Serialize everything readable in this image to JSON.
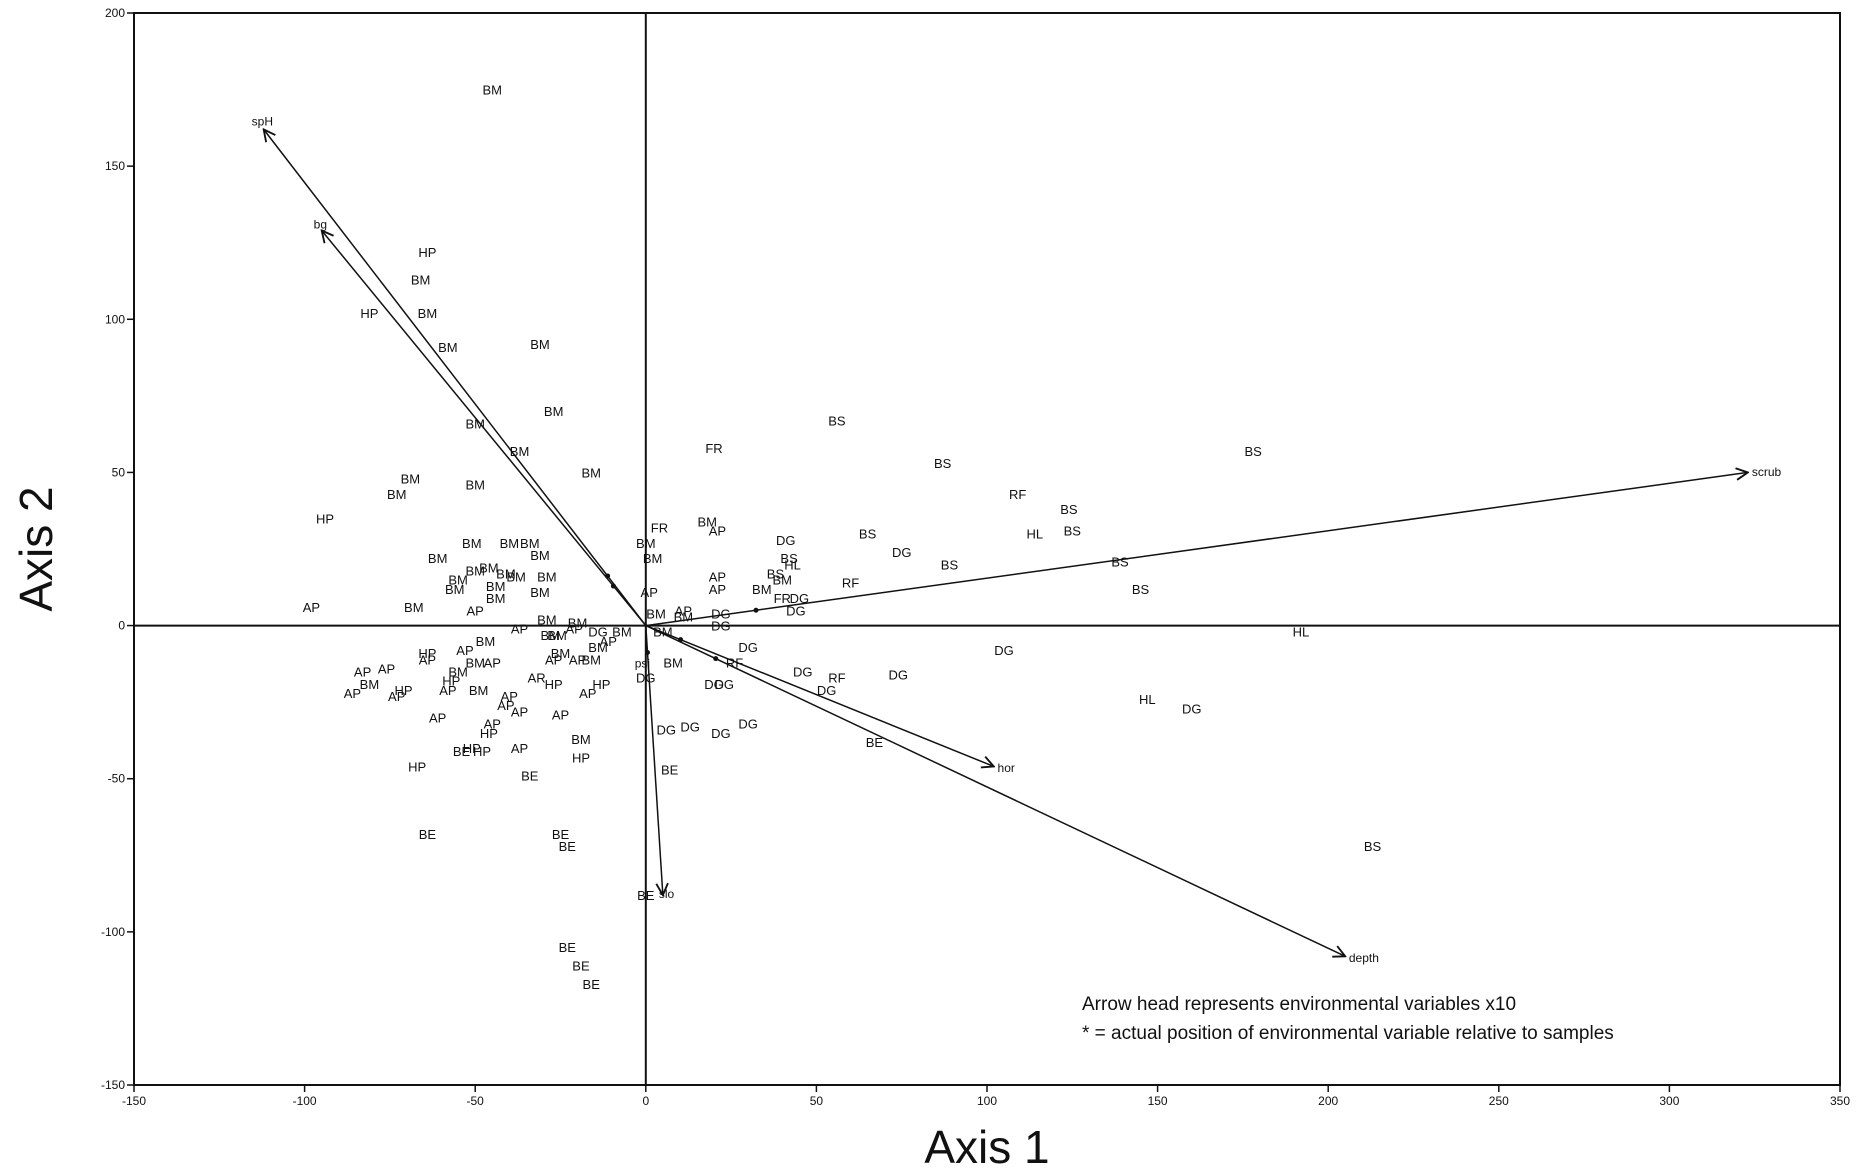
{
  "chart_data": {
    "type": "scatter",
    "xlabel": "Axis 1",
    "ylabel": "Axis 2",
    "xlim": [
      -150,
      350
    ],
    "ylim": [
      -150,
      200
    ],
    "xticks": [
      -150,
      -100,
      -50,
      0,
      50,
      100,
      150,
      200,
      250,
      300,
      350
    ],
    "yticks": [
      -150,
      -100,
      -50,
      0,
      50,
      100,
      150,
      200
    ],
    "reference_lines": {
      "x0": true,
      "y0": true
    },
    "annotations": [
      "Arrow head represents environmental variables x10",
      "* = actual position of environmental variable relative to samples"
    ],
    "vectors": [
      {
        "name": "spH",
        "x": -112,
        "y": 162
      },
      {
        "name": "bg",
        "x": -95,
        "y": 129
      },
      {
        "name": "scrub",
        "x": 323,
        "y": 50
      },
      {
        "name": "hor",
        "x": 102,
        "y": -46
      },
      {
        "name": "depth",
        "x": 205,
        "y": -108
      },
      {
        "name": "slo",
        "x": 5,
        "y": -88
      }
    ],
    "extra_labels": [
      {
        "text": "psi",
        "x": -1,
        "y": -12
      }
    ],
    "points": [
      {
        "label": "BM",
        "x": -45,
        "y": 175
      },
      {
        "label": "HP",
        "x": -64,
        "y": 122
      },
      {
        "label": "BM",
        "x": -66,
        "y": 113
      },
      {
        "label": "HP",
        "x": -81,
        "y": 102
      },
      {
        "label": "BM",
        "x": -64,
        "y": 102
      },
      {
        "label": "BM",
        "x": -58,
        "y": 91
      },
      {
        "label": "BM",
        "x": -31,
        "y": 92
      },
      {
        "label": "BM",
        "x": -27,
        "y": 70
      },
      {
        "label": "BM",
        "x": -50,
        "y": 66
      },
      {
        "label": "BM",
        "x": -37,
        "y": 57
      },
      {
        "label": "BM",
        "x": -69,
        "y": 48
      },
      {
        "label": "BM",
        "x": -73,
        "y": 43
      },
      {
        "label": "BM",
        "x": -50,
        "y": 46
      },
      {
        "label": "BM",
        "x": -16,
        "y": 50
      },
      {
        "label": "HP",
        "x": -94,
        "y": 35
      },
      {
        "label": "BM",
        "x": -51,
        "y": 27
      },
      {
        "label": "BM",
        "x": -40,
        "y": 27
      },
      {
        "label": "BM",
        "x": -34,
        "y": 27
      },
      {
        "label": "BM",
        "x": -61,
        "y": 22
      },
      {
        "label": "BM",
        "x": -31,
        "y": 23
      },
      {
        "label": "BM",
        "x": -46,
        "y": 19
      },
      {
        "label": "BM",
        "x": -50,
        "y": 18
      },
      {
        "label": "BM",
        "x": -55,
        "y": 15
      },
      {
        "label": "BM",
        "x": -41,
        "y": 17
      },
      {
        "label": "BM",
        "x": -44,
        "y": 13
      },
      {
        "label": "BM",
        "x": -38,
        "y": 16
      },
      {
        "label": "BM",
        "x": -29,
        "y": 16
      },
      {
        "label": "BM",
        "x": -56,
        "y": 12
      },
      {
        "label": "BM",
        "x": -31,
        "y": 11
      },
      {
        "label": "BM",
        "x": -44,
        "y": 9
      },
      {
        "label": "AP",
        "x": -98,
        "y": 6
      },
      {
        "label": "BM",
        "x": -68,
        "y": 6
      },
      {
        "label": "AP",
        "x": -50,
        "y": 5
      },
      {
        "label": "AP",
        "x": -37,
        "y": -1
      },
      {
        "label": "BM",
        "x": -29,
        "y": 2
      },
      {
        "label": "BM",
        "x": -26,
        "y": -3
      },
      {
        "label": "BM",
        "x": -47,
        "y": -5
      },
      {
        "label": "AP",
        "x": -53,
        "y": -8
      },
      {
        "label": "AP",
        "x": -45,
        "y": -12
      },
      {
        "label": "BM",
        "x": -50,
        "y": -12
      },
      {
        "label": "HP",
        "x": -64,
        "y": -9
      },
      {
        "label": "AP",
        "x": -64,
        "y": -11
      },
      {
        "label": "BM",
        "x": -55,
        "y": -15
      },
      {
        "label": "AP",
        "x": -83,
        "y": -15
      },
      {
        "label": "AP",
        "x": -76,
        "y": -14
      },
      {
        "label": "BM",
        "x": -81,
        "y": -19
      },
      {
        "label": "AP",
        "x": -86,
        "y": -22
      },
      {
        "label": "HP",
        "x": -71,
        "y": -21
      },
      {
        "label": "AP",
        "x": -73,
        "y": -23
      },
      {
        "label": "HP",
        "x": -57,
        "y": -18
      },
      {
        "label": "AP",
        "x": -58,
        "y": -21
      },
      {
        "label": "BM",
        "x": -49,
        "y": -21
      },
      {
        "label": "AP",
        "x": -40,
        "y": -23
      },
      {
        "label": "AP",
        "x": -41,
        "y": -26
      },
      {
        "label": "AP",
        "x": -37,
        "y": -28
      },
      {
        "label": "AP",
        "x": -61,
        "y": -30
      },
      {
        "label": "AP",
        "x": -45,
        "y": -32
      },
      {
        "label": "HP",
        "x": -46,
        "y": -35
      },
      {
        "label": "HP",
        "x": -51,
        "y": -40
      },
      {
        "label": "HP",
        "x": -48,
        "y": -41
      },
      {
        "label": "BE",
        "x": -54,
        "y": -41
      },
      {
        "label": "AP",
        "x": -37,
        "y": -40
      },
      {
        "label": "HP",
        "x": -67,
        "y": -46
      },
      {
        "label": "BE",
        "x": -34,
        "y": -49
      },
      {
        "label": "BM",
        "x": -19,
        "y": -37
      },
      {
        "label": "HP",
        "x": -19,
        "y": -43
      },
      {
        "label": "AP",
        "x": -25,
        "y": -29
      },
      {
        "label": "AR",
        "x": -32,
        "y": -17
      },
      {
        "label": "HP",
        "x": -27,
        "y": -19
      },
      {
        "label": "AP",
        "x": -17,
        "y": -22
      },
      {
        "label": "HP",
        "x": -13,
        "y": -19
      },
      {
        "label": "AP",
        "x": -27,
        "y": -11
      },
      {
        "label": "BM",
        "x": -25,
        "y": -9
      },
      {
        "label": "AP",
        "x": -20,
        "y": -11
      },
      {
        "label": "BM",
        "x": -16,
        "y": -11
      },
      {
        "label": "BM",
        "x": -14,
        "y": -7
      },
      {
        "label": "AP",
        "x": -11,
        "y": -5
      },
      {
        "label": "BM",
        "x": -28,
        "y": -3
      },
      {
        "label": "AP",
        "x": -21,
        "y": -1
      },
      {
        "label": "DG",
        "x": -14,
        "y": -2
      },
      {
        "label": "BM",
        "x": -7,
        "y": -2
      },
      {
        "label": "BM",
        "x": -20,
        "y": 1
      },
      {
        "label": "BE",
        "x": -25,
        "y": -68
      },
      {
        "label": "BE",
        "x": -23,
        "y": -72
      },
      {
        "label": "BE",
        "x": -64,
        "y": -68
      },
      {
        "label": "BE",
        "x": -23,
        "y": -105
      },
      {
        "label": "BE",
        "x": -19,
        "y": -111
      },
      {
        "label": "BE",
        "x": -16,
        "y": -117
      },
      {
        "label": "BE",
        "x": 7,
        "y": -47
      },
      {
        "label": "BE",
        "x": 0,
        "y": -88
      },
      {
        "label": "FR",
        "x": 20,
        "y": 58
      },
      {
        "label": "FR",
        "x": 4,
        "y": 32
      },
      {
        "label": "BM",
        "x": 0,
        "y": 27
      },
      {
        "label": "BM",
        "x": 2,
        "y": 22
      },
      {
        "label": "BM",
        "x": 18,
        "y": 34
      },
      {
        "label": "AP",
        "x": 21,
        "y": 31
      },
      {
        "label": "AP",
        "x": 1,
        "y": 11
      },
      {
        "label": "AP",
        "x": 21,
        "y": 16
      },
      {
        "label": "AP",
        "x": 21,
        "y": 12
      },
      {
        "label": "BM",
        "x": 34,
        "y": 12
      },
      {
        "label": "BM",
        "x": 3,
        "y": 4
      },
      {
        "label": "AP",
        "x": 11,
        "y": 5
      },
      {
        "label": "BM",
        "x": 11,
        "y": 3
      },
      {
        "label": "DG",
        "x": 22,
        "y": 4
      },
      {
        "label": "DG",
        "x": 22,
        "y": 0
      },
      {
        "label": "BM",
        "x": 5,
        "y": -2
      },
      {
        "label": "DG",
        "x": 30,
        "y": -7
      },
      {
        "label": "BM",
        "x": 8,
        "y": -12
      },
      {
        "label": "RF",
        "x": 26,
        "y": -12
      },
      {
        "label": "DG",
        "x": 0,
        "y": -17
      },
      {
        "label": "DG",
        "x": 20,
        "y": -19
      },
      {
        "label": "DG",
        "x": 23,
        "y": -19
      },
      {
        "label": "DG",
        "x": 6,
        "y": -34
      },
      {
        "label": "DG",
        "x": 13,
        "y": -33
      },
      {
        "label": "DG",
        "x": 22,
        "y": -35
      },
      {
        "label": "DG",
        "x": 30,
        "y": -32
      },
      {
        "label": "DG",
        "x": 41,
        "y": 28
      },
      {
        "label": "BS",
        "x": 42,
        "y": 22
      },
      {
        "label": "HL",
        "x": 43,
        "y": 20
      },
      {
        "label": "BS",
        "x": 38,
        "y": 17
      },
      {
        "label": "BM",
        "x": 40,
        "y": 15
      },
      {
        "label": "FR",
        "x": 40,
        "y": 9
      },
      {
        "label": "DG",
        "x": 45,
        "y": 9
      },
      {
        "label": "DG",
        "x": 44,
        "y": 5
      },
      {
        "label": "DG",
        "x": 46,
        "y": -15
      },
      {
        "label": "RF",
        "x": 56,
        "y": -17
      },
      {
        "label": "DG",
        "x": 53,
        "y": -21
      },
      {
        "label": "BE",
        "x": 67,
        "y": -38
      },
      {
        "label": "DG",
        "x": 74,
        "y": -16
      },
      {
        "label": "DG",
        "x": 105,
        "y": -8
      },
      {
        "label": "RF",
        "x": 60,
        "y": 14
      },
      {
        "label": "BS",
        "x": 56,
        "y": 67
      },
      {
        "label": "BS",
        "x": 87,
        "y": 53
      },
      {
        "label": "RF",
        "x": 109,
        "y": 43
      },
      {
        "label": "BS",
        "x": 124,
        "y": 38
      },
      {
        "label": "HL",
        "x": 114,
        "y": 30
      },
      {
        "label": "BS",
        "x": 125,
        "y": 31
      },
      {
        "label": "BS",
        "x": 65,
        "y": 30
      },
      {
        "label": "DG",
        "x": 75,
        "y": 24
      },
      {
        "label": "BS",
        "x": 89,
        "y": 20
      },
      {
        "label": "BS",
        "x": 139,
        "y": 21
      },
      {
        "label": "BS",
        "x": 145,
        "y": 12
      },
      {
        "label": "BS",
        "x": 178,
        "y": 57
      },
      {
        "label": "HL",
        "x": 192,
        "y": -2
      },
      {
        "label": "HL",
        "x": 147,
        "y": -24
      },
      {
        "label": "DG",
        "x": 160,
        "y": -27
      },
      {
        "label": "BS",
        "x": 213,
        "y": -72
      }
    ],
    "legend": "none",
    "grid": false
  }
}
